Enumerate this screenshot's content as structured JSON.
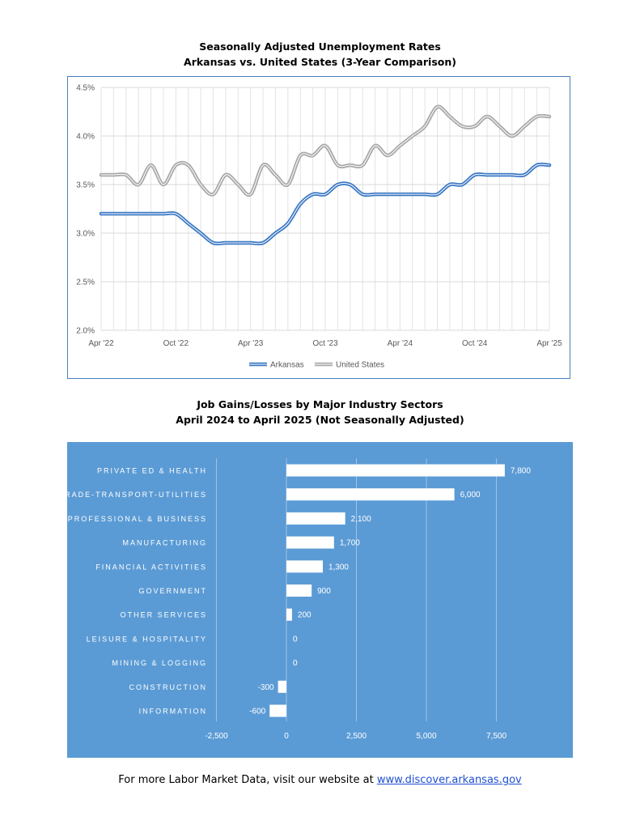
{
  "chart_data": [
    {
      "type": "line",
      "title": "Seasonally Adjusted Unemployment Rates",
      "subtitle": "Arkansas vs. United States (3-Year Comparison)",
      "x": [
        "Apr '22",
        "May '22",
        "Jun '22",
        "Jul '22",
        "Aug '22",
        "Sep '22",
        "Oct '22",
        "Nov '22",
        "Dec '22",
        "Jan '23",
        "Feb '23",
        "Mar '23",
        "Apr '23",
        "May '23",
        "Jun '23",
        "Jul '23",
        "Aug '23",
        "Sep '23",
        "Oct '23",
        "Nov '23",
        "Dec '23",
        "Jan '24",
        "Feb '24",
        "Mar '24",
        "Apr '24",
        "May '24",
        "Jun '24",
        "Jul '24",
        "Aug '24",
        "Sep '24",
        "Oct '24",
        "Nov '24",
        "Dec '24",
        "Jan '25",
        "Feb '25",
        "Mar '25",
        "Apr '25"
      ],
      "x_tick_labels": [
        "Apr '22",
        "Oct '22",
        "Apr '23",
        "Oct '23",
        "Apr '24",
        "Oct '24",
        "Apr '25"
      ],
      "y_tick_labels": [
        "2.0%",
        "2.5%",
        "3.0%",
        "3.5%",
        "4.0%",
        "4.5%"
      ],
      "ylim": [
        2.0,
        4.5
      ],
      "grid": true,
      "legend_position": "bottom",
      "series": [
        {
          "name": "Arkansas",
          "color": "#3b78c4",
          "values": [
            3.2,
            3.2,
            3.2,
            3.2,
            3.2,
            3.2,
            3.2,
            3.1,
            3.0,
            2.9,
            2.9,
            2.9,
            2.9,
            2.9,
            3.0,
            3.1,
            3.3,
            3.4,
            3.4,
            3.5,
            3.5,
            3.4,
            3.4,
            3.4,
            3.4,
            3.4,
            3.4,
            3.4,
            3.5,
            3.5,
            3.6,
            3.6,
            3.6,
            3.6,
            3.6,
            3.7,
            3.7
          ]
        },
        {
          "name": "United States",
          "color": "#a8a8a8",
          "values": [
            3.6,
            3.6,
            3.6,
            3.5,
            3.7,
            3.5,
            3.7,
            3.7,
            3.5,
            3.4,
            3.6,
            3.5,
            3.4,
            3.7,
            3.6,
            3.5,
            3.8,
            3.8,
            3.9,
            3.7,
            3.7,
            3.7,
            3.9,
            3.8,
            3.9,
            4.0,
            4.1,
            4.3,
            4.2,
            4.1,
            4.1,
            4.2,
            4.1,
            4.0,
            4.1,
            4.2,
            4.2
          ]
        }
      ]
    },
    {
      "type": "bar",
      "orientation": "horizontal",
      "title": "Job Gains/Losses by Major Industry Sectors",
      "subtitle": "April 2024 to April 2025 (Not Seasonally Adjusted)",
      "categories": [
        "PRIVATE ED & HEALTH",
        "TRADE-TRANSPORT-UTILITIES",
        "PROFESSIONAL & BUSINESS",
        "MANUFACTURING",
        "FINANCIAL ACTIVITIES",
        "GOVERNMENT",
        "OTHER SERVICES",
        "LEISURE & HOSPITALITY",
        "MINING & LOGGING",
        "CONSTRUCTION",
        "INFORMATION"
      ],
      "values": [
        7800,
        6000,
        2100,
        1700,
        1300,
        900,
        200,
        0,
        0,
        -300,
        -600
      ],
      "value_labels": [
        "7,800",
        "6,000",
        "2,100",
        "1,700",
        "1,300",
        "900",
        "200",
        "0",
        "0",
        "-300",
        "-600"
      ],
      "x_tick_values": [
        -2500,
        0,
        2500,
        5000,
        7500
      ],
      "x_tick_labels": [
        "-2,500",
        "0",
        "2,500",
        "5,000",
        "7,500"
      ],
      "xlim": [
        -2500,
        8500
      ],
      "grid": true,
      "background_color": "#5b9bd5",
      "bar_color": "#ffffff"
    }
  ],
  "footer": {
    "text": "For more Labor Market Data, visit our website at ",
    "link_text": "www.discover.arkansas.gov"
  }
}
